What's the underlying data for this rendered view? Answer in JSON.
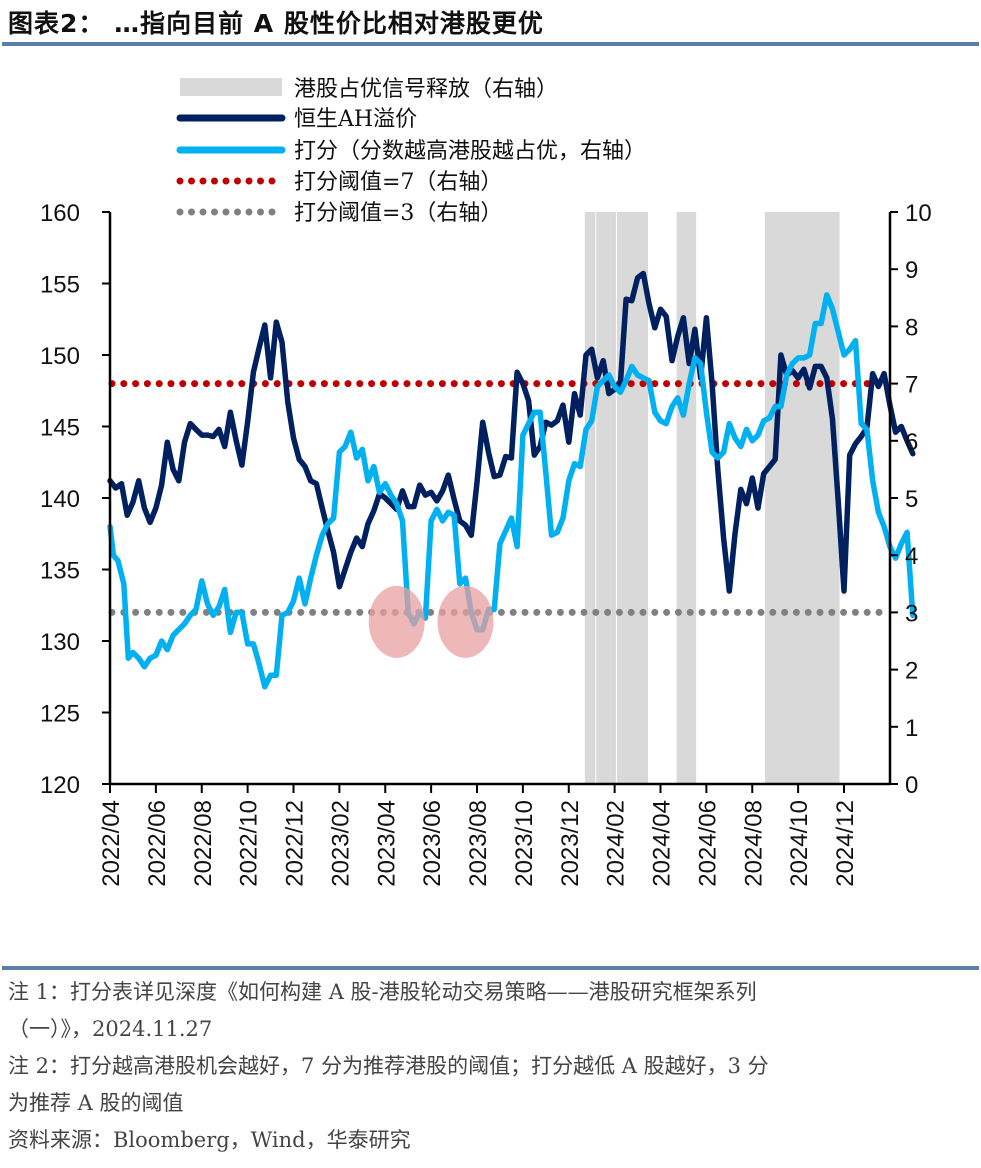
{
  "title": "图表2：  …指向目前 A 股性价比相对港股更优",
  "notes": {
    "note1_line1": "注 1：打分表详见深度《如何构建 A 股-港股轮动交易策略——港股研究框架系列",
    "note1_line2": "（一）》，2024.11.27",
    "note2_line1": "注 2：打分越高港股机会越好，7 分为推荐港股的阈值；打分越低 A 股越好，3 分",
    "note2_line2": "为推荐 A 股的阈值",
    "source": "资料来源：Bloomberg，Wind，华泰研究"
  },
  "colors": {
    "ah_premium": "#002060",
    "score": "#00b0f0",
    "threshold7": "#c00000",
    "threshold3": "#808080",
    "shade": "#d9d9d9",
    "highlight": "#e8a0a0",
    "rule": "#5b7fa6"
  },
  "chart_data": {
    "type": "line",
    "title": "…指向目前 A 股性价比相对港股更优",
    "xlabel": "",
    "ylabel_left": "恒生AH溢价",
    "ylabel_right": "打分",
    "x_ticks": [
      "2022/04",
      "2022/06",
      "2022/08",
      "2022/10",
      "2022/12",
      "2023/02",
      "2023/04",
      "2023/06",
      "2023/08",
      "2023/10",
      "2023/12",
      "2024/02",
      "2024/04",
      "2024/06",
      "2024/08",
      "2024/10",
      "2024/12"
    ],
    "x_unit": "months since 2022/04",
    "y_left": {
      "min": 120,
      "max": 160,
      "ticks": [
        "120",
        "125",
        "130",
        "135",
        "140",
        "145",
        "150",
        "155",
        "160"
      ]
    },
    "y_right": {
      "min": 0,
      "max": 10,
      "ticks": [
        "0",
        "1",
        "2",
        "3",
        "4",
        "5",
        "6",
        "7",
        "8",
        "9",
        "10"
      ]
    },
    "grid": false,
    "legend_position": "top",
    "legend": [
      {
        "key": "shade",
        "label": "港股占优信号释放（右轴）"
      },
      {
        "key": "ah",
        "label": "恒生AH溢价"
      },
      {
        "key": "score",
        "label": "打分（分数越高港股越占优，右轴）"
      },
      {
        "key": "t7",
        "label": "打分阈值=7（右轴）"
      },
      {
        "key": "t3",
        "label": "打分阈值=3（右轴）"
      }
    ],
    "shaded_periods": [
      {
        "start": 20.7,
        "end": 21.2
      },
      {
        "start": 21.2,
        "end": 22.1
      },
      {
        "start": 22.1,
        "end": 23.5
      },
      {
        "start": 24.7,
        "end": 25.6
      },
      {
        "start": 28.55,
        "end": 31.85
      }
    ],
    "thresholds": [
      {
        "name": "打分阈值=7",
        "value": 7,
        "axis": "right"
      },
      {
        "name": "打分阈值=3",
        "value": 3,
        "axis": "right"
      }
    ],
    "highlights": [
      {
        "x": 12.5,
        "y_right": 2.8
      },
      {
        "x": 15.5,
        "y_right": 2.8
      }
    ],
    "series": [
      {
        "name": "恒生AH溢价",
        "axis": "left",
        "points": [
          [
            0,
            141.2
          ],
          [
            0.25,
            140.7
          ],
          [
            0.5,
            141.0
          ],
          [
            0.75,
            138.8
          ],
          [
            1.0,
            139.7
          ],
          [
            1.25,
            141.2
          ],
          [
            1.5,
            139.3
          ],
          [
            1.75,
            138.3
          ],
          [
            2.0,
            139.3
          ],
          [
            2.25,
            140.9
          ],
          [
            2.5,
            143.9
          ],
          [
            2.75,
            142.0
          ],
          [
            3.0,
            141.2
          ],
          [
            3.25,
            143.9
          ],
          [
            3.5,
            145.2
          ],
          [
            3.75,
            144.8
          ],
          [
            4.0,
            144.4
          ],
          [
            4.25,
            144.4
          ],
          [
            4.5,
            144.3
          ],
          [
            4.75,
            144.8
          ],
          [
            5.0,
            143.6
          ],
          [
            5.25,
            146.0
          ],
          [
            5.5,
            144.0
          ],
          [
            5.75,
            142.3
          ],
          [
            6.0,
            145.3
          ],
          [
            6.25,
            148.8
          ],
          [
            6.5,
            150.5
          ],
          [
            6.75,
            152.1
          ],
          [
            7.0,
            148.4
          ],
          [
            7.25,
            152.3
          ],
          [
            7.5,
            150.9
          ],
          [
            7.75,
            146.7
          ],
          [
            8.0,
            144.2
          ],
          [
            8.25,
            142.7
          ],
          [
            8.5,
            142.2
          ],
          [
            8.75,
            141.2
          ],
          [
            9.0,
            141.0
          ],
          [
            9.25,
            139.3
          ],
          [
            9.5,
            137.7
          ],
          [
            9.75,
            136.2
          ],
          [
            10.0,
            133.8
          ],
          [
            10.25,
            135.0
          ],
          [
            10.5,
            136.2
          ],
          [
            10.75,
            137.2
          ],
          [
            11.0,
            136.6
          ],
          [
            11.25,
            138.2
          ],
          [
            11.5,
            139.1
          ],
          [
            11.75,
            140.3
          ],
          [
            12.0,
            140.0
          ],
          [
            12.25,
            139.6
          ],
          [
            12.5,
            139.2
          ],
          [
            12.75,
            140.5
          ],
          [
            13.0,
            139.4
          ],
          [
            13.25,
            139.4
          ],
          [
            13.5,
            140.9
          ],
          [
            13.75,
            140.2
          ],
          [
            14.0,
            140.4
          ],
          [
            14.25,
            139.8
          ],
          [
            14.5,
            140.5
          ],
          [
            14.75,
            141.6
          ],
          [
            15.0,
            139.9
          ],
          [
            15.25,
            138.4
          ],
          [
            15.5,
            138.1
          ],
          [
            15.75,
            137.4
          ],
          [
            16.0,
            141.1
          ],
          [
            16.25,
            145.3
          ],
          [
            16.5,
            143.2
          ],
          [
            16.75,
            141.5
          ],
          [
            17.0,
            141.6
          ],
          [
            17.25,
            142.9
          ],
          [
            17.5,
            142.8
          ],
          [
            17.75,
            148.8
          ],
          [
            18.0,
            148.0
          ],
          [
            18.25,
            146.8
          ],
          [
            18.5,
            143.0
          ],
          [
            18.75,
            143.6
          ],
          [
            19.0,
            145.3
          ],
          [
            19.25,
            145.1
          ],
          [
            19.5,
            145.4
          ],
          [
            19.75,
            146.5
          ],
          [
            20.0,
            143.9
          ],
          [
            20.25,
            147.3
          ],
          [
            20.5,
            145.8
          ],
          [
            20.75,
            150.0
          ],
          [
            21.0,
            150.4
          ],
          [
            21.25,
            148.4
          ],
          [
            21.5,
            149.6
          ],
          [
            21.75,
            147.3
          ],
          [
            22.0,
            147.6
          ],
          [
            22.25,
            148.0
          ],
          [
            22.5,
            153.9
          ],
          [
            22.75,
            153.8
          ],
          [
            23.0,
            155.4
          ],
          [
            23.25,
            155.7
          ],
          [
            23.5,
            153.6
          ],
          [
            23.75,
            151.9
          ],
          [
            24.0,
            153.2
          ],
          [
            24.25,
            152.7
          ],
          [
            24.5,
            149.6
          ],
          [
            24.75,
            151.3
          ],
          [
            25.0,
            152.6
          ],
          [
            25.25,
            149.4
          ],
          [
            25.5,
            151.8
          ],
          [
            25.75,
            148.4
          ],
          [
            26.0,
            152.6
          ],
          [
            26.25,
            148.0
          ],
          [
            26.5,
            142.0
          ],
          [
            26.75,
            137.2
          ],
          [
            27.0,
            133.5
          ],
          [
            27.25,
            137.5
          ],
          [
            27.5,
            140.6
          ],
          [
            27.75,
            139.6
          ],
          [
            28.0,
            141.4
          ],
          [
            28.25,
            139.3
          ],
          [
            28.5,
            141.7
          ],
          [
            28.75,
            142.2
          ],
          [
            29.0,
            142.7
          ],
          [
            29.25,
            150.0
          ],
          [
            29.5,
            148.6
          ],
          [
            29.75,
            148.9
          ],
          [
            30.0,
            148.4
          ],
          [
            30.25,
            149.0
          ],
          [
            30.5,
            147.7
          ],
          [
            30.75,
            149.2
          ],
          [
            31.0,
            149.2
          ],
          [
            31.25,
            148.4
          ],
          [
            31.5,
            145.5
          ],
          [
            31.75,
            139.7
          ],
          [
            32.0,
            133.5
          ],
          [
            32.25,
            143.0
          ],
          [
            32.5,
            143.8
          ],
          [
            32.75,
            144.3
          ],
          [
            33.0,
            144.9
          ],
          [
            33.25,
            148.7
          ],
          [
            33.5,
            147.8
          ],
          [
            33.75,
            148.7
          ],
          [
            34.0,
            146.5
          ],
          [
            34.25,
            144.6
          ],
          [
            34.5,
            145.0
          ],
          [
            34.75,
            144.0
          ],
          [
            35.0,
            143.1
          ]
        ]
      },
      {
        "name": "打分（分数越高港股越占优，右轴）",
        "axis": "right",
        "points": [
          [
            0,
            4.5
          ],
          [
            0.15,
            4.0
          ],
          [
            0.35,
            3.9
          ],
          [
            0.6,
            3.5
          ],
          [
            0.8,
            2.2
          ],
          [
            1.0,
            2.3
          ],
          [
            1.25,
            2.2
          ],
          [
            1.5,
            2.05
          ],
          [
            1.75,
            2.2
          ],
          [
            2.0,
            2.25
          ],
          [
            2.25,
            2.5
          ],
          [
            2.5,
            2.35
          ],
          [
            2.75,
            2.6
          ],
          [
            3.0,
            2.7
          ],
          [
            3.25,
            2.8
          ],
          [
            3.5,
            2.95
          ],
          [
            3.75,
            3.05
          ],
          [
            4.0,
            3.55
          ],
          [
            4.25,
            3.15
          ],
          [
            4.5,
            2.95
          ],
          [
            4.75,
            3.1
          ],
          [
            5.0,
            3.4
          ],
          [
            5.25,
            2.65
          ],
          [
            5.5,
            3.0
          ],
          [
            5.75,
            3.0
          ],
          [
            6.0,
            2.45
          ],
          [
            6.25,
            2.45
          ],
          [
            6.5,
            2.1
          ],
          [
            6.75,
            1.7
          ],
          [
            7.0,
            1.9
          ],
          [
            7.25,
            1.9
          ],
          [
            7.5,
            2.95
          ],
          [
            7.75,
            3.0
          ],
          [
            8.0,
            3.2
          ],
          [
            8.25,
            3.6
          ],
          [
            8.5,
            3.15
          ],
          [
            8.75,
            3.6
          ],
          [
            9.0,
            4.0
          ],
          [
            9.25,
            4.35
          ],
          [
            9.5,
            4.55
          ],
          [
            9.75,
            4.65
          ],
          [
            10.0,
            5.8
          ],
          [
            10.25,
            5.9
          ],
          [
            10.5,
            6.15
          ],
          [
            10.75,
            5.7
          ],
          [
            11.0,
            5.85
          ],
          [
            11.25,
            5.3
          ],
          [
            11.5,
            5.55
          ],
          [
            11.75,
            5.1
          ],
          [
            12.0,
            5.25
          ],
          [
            12.25,
            5.05
          ],
          [
            12.5,
            4.9
          ],
          [
            12.75,
            4.6
          ],
          [
            13.0,
            3.0
          ],
          [
            13.25,
            2.8
          ],
          [
            13.5,
            3.0
          ],
          [
            13.75,
            2.9
          ],
          [
            14.0,
            4.6
          ],
          [
            14.25,
            4.8
          ],
          [
            14.5,
            4.6
          ],
          [
            14.75,
            4.75
          ],
          [
            15.0,
            4.7
          ],
          [
            15.25,
            3.5
          ],
          [
            15.5,
            3.6
          ],
          [
            15.75,
            3.0
          ],
          [
            16.0,
            2.7
          ],
          [
            16.25,
            2.7
          ],
          [
            16.5,
            3.05
          ],
          [
            16.75,
            3.05
          ],
          [
            17.0,
            4.2
          ],
          [
            17.5,
            4.65
          ],
          [
            17.75,
            4.15
          ],
          [
            18.0,
            6.1
          ],
          [
            18.25,
            6.3
          ],
          [
            18.5,
            6.5
          ],
          [
            18.75,
            6.5
          ],
          [
            19.0,
            5.45
          ],
          [
            19.25,
            4.35
          ],
          [
            19.5,
            4.4
          ],
          [
            19.75,
            4.65
          ],
          [
            20.0,
            5.3
          ],
          [
            20.25,
            5.6
          ],
          [
            20.5,
            5.55
          ],
          [
            20.75,
            6.2
          ],
          [
            21.0,
            6.35
          ],
          [
            21.25,
            6.95
          ],
          [
            21.5,
            7.05
          ],
          [
            21.75,
            7.15
          ],
          [
            22.0,
            6.95
          ],
          [
            22.25,
            6.85
          ],
          [
            22.5,
            7.05
          ],
          [
            22.75,
            7.3
          ],
          [
            23.0,
            7.15
          ],
          [
            23.25,
            7.1
          ],
          [
            23.5,
            7.05
          ],
          [
            23.75,
            6.5
          ],
          [
            24.0,
            6.35
          ],
          [
            24.25,
            6.3
          ],
          [
            24.5,
            6.6
          ],
          [
            24.75,
            6.75
          ],
          [
            25.0,
            6.45
          ],
          [
            25.25,
            7.0
          ],
          [
            25.5,
            7.45
          ],
          [
            25.75,
            7.35
          ],
          [
            26.0,
            6.5
          ],
          [
            26.25,
            5.8
          ],
          [
            26.5,
            5.7
          ],
          [
            26.75,
            5.8
          ],
          [
            27.0,
            6.3
          ],
          [
            27.25,
            6.05
          ],
          [
            27.5,
            5.9
          ],
          [
            27.75,
            6.2
          ],
          [
            28.0,
            6.0
          ],
          [
            28.25,
            6.1
          ],
          [
            28.5,
            6.35
          ],
          [
            28.75,
            6.4
          ],
          [
            29.0,
            6.6
          ],
          [
            29.25,
            6.6
          ],
          [
            29.5,
            7.15
          ],
          [
            29.75,
            7.35
          ],
          [
            30.0,
            7.45
          ],
          [
            30.25,
            7.45
          ],
          [
            30.5,
            7.5
          ],
          [
            30.75,
            8.05
          ],
          [
            31.0,
            8.05
          ],
          [
            31.25,
            8.55
          ],
          [
            31.5,
            8.3
          ],
          [
            31.75,
            7.9
          ],
          [
            32.0,
            7.5
          ],
          [
            32.25,
            7.6
          ],
          [
            32.5,
            7.75
          ],
          [
            32.75,
            6.3
          ],
          [
            33.0,
            6.2
          ],
          [
            33.25,
            5.3
          ],
          [
            33.5,
            4.75
          ],
          [
            33.75,
            4.5
          ],
          [
            34.0,
            4.15
          ],
          [
            34.25,
            3.95
          ],
          [
            34.5,
            4.2
          ],
          [
            34.75,
            4.4
          ],
          [
            35.0,
            2.95
          ]
        ]
      }
    ]
  }
}
